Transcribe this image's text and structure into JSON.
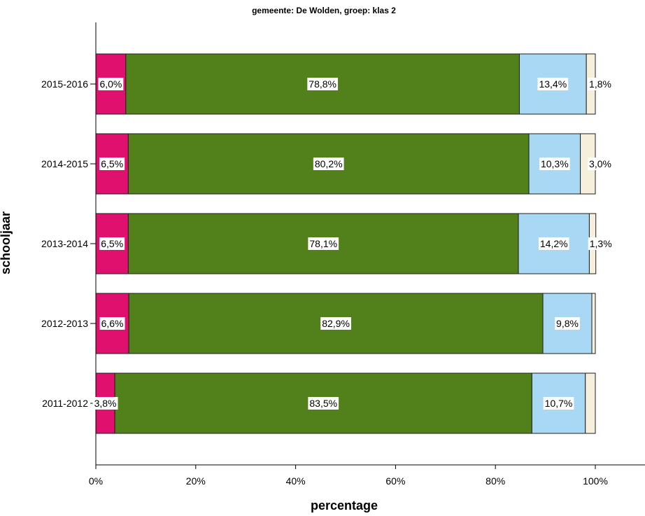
{
  "chart_data": {
    "type": "bar",
    "orientation": "horizontal",
    "stacked": true,
    "title": "gemeente: De Wolden, groep: klas 2",
    "xlabel": "percentage",
    "ylabel": "schooljaar",
    "xlim": [
      0,
      100
    ],
    "xticks": [
      "0%",
      "20%",
      "40%",
      "60%",
      "80%",
      "100%"
    ],
    "categories": [
      "2015-2016",
      "2014-2015",
      "2013-2014",
      "2012-2013",
      "2011-2012"
    ],
    "series": [
      {
        "color": "#E0106E",
        "values": [
          6.0,
          6.5,
          6.5,
          6.6,
          3.8
        ],
        "labels": [
          "6,0%",
          "6,5%",
          "6,5%",
          "6,6%",
          "3,8%"
        ]
      },
      {
        "color": "#52801A",
        "values": [
          78.8,
          80.2,
          78.1,
          82.9,
          83.5
        ],
        "labels": [
          "78,8%",
          "80,2%",
          "78,1%",
          "82,9%",
          "83,5%"
        ]
      },
      {
        "color": "#A8D8F4",
        "values": [
          13.4,
          10.3,
          14.2,
          9.8,
          10.7
        ],
        "labels": [
          "13,4%",
          "10,3%",
          "14,2%",
          "9,8%",
          "10,7%"
        ]
      },
      {
        "color": "#F5EFDC",
        "values": [
          1.8,
          3.0,
          1.3,
          0.7,
          2.0
        ],
        "labels": [
          "1,8%",
          "3,0%",
          "1,3%",
          "",
          ""
        ]
      }
    ],
    "grid": false,
    "legend": "none"
  }
}
